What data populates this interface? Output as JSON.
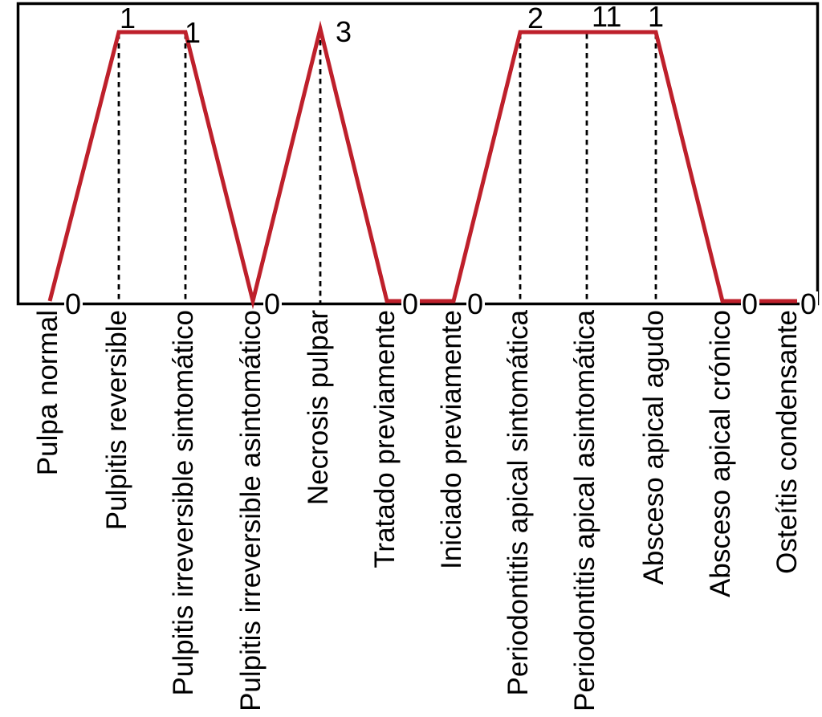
{
  "figure": {
    "background": "#ffffff",
    "accent_red": "#be202b",
    "axis_color": "#000000",
    "text_color": "#000000"
  },
  "chart_data": {
    "type": "line",
    "categories": [
      "Pulpa normal",
      "Pulpitis reversible",
      "Pulpitis irreversible sintomático",
      "Pulpitis irreversible asintomático",
      "Necrosis pulpar",
      "Tratado previamente",
      "Iniciado previamente",
      "Periodontitis apical sintomática",
      "Periodontitis apical asintomática",
      "Absceso apical agudo",
      "Absceso apical crónico",
      "Osteítis condensante"
    ],
    "values": [
      0,
      1,
      1,
      0,
      3,
      0,
      0,
      2,
      11,
      1,
      0,
      0
    ],
    "value_labels": [
      "0",
      "1",
      "1",
      "0",
      "3",
      "0",
      "0",
      "2",
      "11",
      "1",
      "0",
      "0"
    ],
    "title": "",
    "xlabel": "",
    "ylabel": "",
    "line_color": "#be202b",
    "layout_hints": {
      "grid": false,
      "legend": "none",
      "x_label_rotation_deg": -90,
      "droplines": "dashed vertical lines at nonzero points",
      "nonzero_points_drawn_at_uniform_height": true,
      "zero_level_line_sits_just_above_x_axis": true
    }
  }
}
